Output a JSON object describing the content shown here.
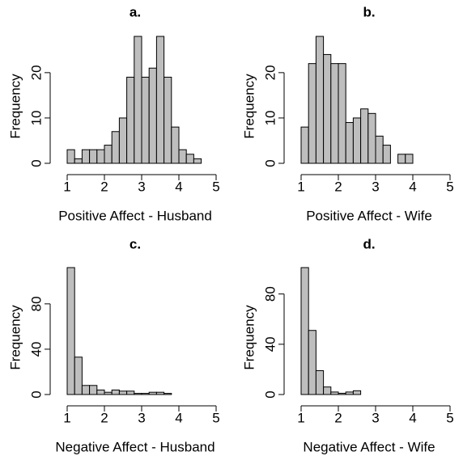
{
  "chart_data": [
    {
      "type": "histogram",
      "title": "a.",
      "x_label": "Positive Affect - Husband",
      "y_label": "Frequency",
      "color": "#bebebe",
      "bins": [
        1,
        1.2,
        1.4,
        1.6,
        1.8,
        2,
        2.2,
        2.4,
        2.6,
        2.8,
        3,
        3.2,
        3.4,
        3.6,
        3.8,
        4,
        4.2,
        4.4,
        4.6,
        4.8,
        5
      ],
      "values": [
        3,
        1,
        3,
        3,
        3,
        4,
        7,
        10,
        19,
        28,
        19,
        21,
        28,
        19,
        8,
        3,
        2,
        1,
        0,
        0
      ],
      "xlim": [
        1,
        5
      ],
      "xticks": [
        1,
        2,
        3,
        4,
        5
      ],
      "ylim": [
        0,
        28
      ],
      "yticks": [
        0,
        10,
        20
      ]
    },
    {
      "type": "histogram",
      "title": "b.",
      "x_label": "Positive Affect - Wife",
      "y_label": "Frequency",
      "color": "#bebebe",
      "bins": [
        1,
        1.2,
        1.4,
        1.6,
        1.8,
        2,
        2.2,
        2.4,
        2.6,
        2.8,
        3,
        3.2,
        3.4,
        3.6,
        3.8,
        4,
        4.2,
        4.4,
        4.6,
        4.8,
        5
      ],
      "values": [
        8,
        22,
        28,
        24,
        22,
        22,
        9,
        10,
        12,
        11,
        6,
        4,
        0,
        2,
        2,
        0,
        0,
        0,
        0,
        0
      ],
      "xlim": [
        1,
        5
      ],
      "xticks": [
        1,
        2,
        3,
        4,
        5
      ],
      "ylim": [
        0,
        28
      ],
      "yticks": [
        0,
        10,
        20
      ]
    },
    {
      "type": "histogram",
      "title": "c.",
      "x_label": "Negative Affect - Husband",
      "y_label": "Frequency",
      "color": "#bebebe",
      "bins": [
        1,
        1.2,
        1.4,
        1.6,
        1.8,
        2,
        2.2,
        2.4,
        2.6,
        2.8,
        3,
        3.2,
        3.4,
        3.6,
        3.8,
        4,
        4.2,
        4.4,
        4.6,
        4.8,
        5
      ],
      "values": [
        112,
        33,
        8,
        8,
        4,
        2,
        4,
        3,
        3,
        1,
        1,
        2,
        2,
        1,
        0,
        0,
        0,
        0,
        0,
        0
      ],
      "xlim": [
        1,
        5
      ],
      "xticks": [
        1,
        2,
        3,
        4,
        5
      ],
      "ylim": [
        0,
        112
      ],
      "yticks": [
        0,
        40,
        80
      ]
    },
    {
      "type": "histogram",
      "title": "d.",
      "x_label": "Negative Affect - Wife",
      "y_label": "Frequency",
      "color": "#bebebe",
      "bins": [
        1,
        1.2,
        1.4,
        1.6,
        1.8,
        2,
        2.2,
        2.4,
        2.6,
        2.8,
        3,
        3.2,
        3.4,
        3.6,
        3.8,
        4,
        4.2,
        4.4,
        4.6,
        4.8,
        5
      ],
      "values": [
        101,
        51,
        19,
        6,
        2,
        1,
        2,
        3,
        0,
        0,
        0,
        0,
        0,
        0,
        0,
        0,
        0,
        0,
        0,
        0
      ],
      "xlim": [
        1,
        5
      ],
      "xticks": [
        1,
        2,
        3,
        4,
        5
      ],
      "ylim": [
        0,
        101
      ],
      "yticks": [
        0,
        40,
        80
      ]
    }
  ]
}
